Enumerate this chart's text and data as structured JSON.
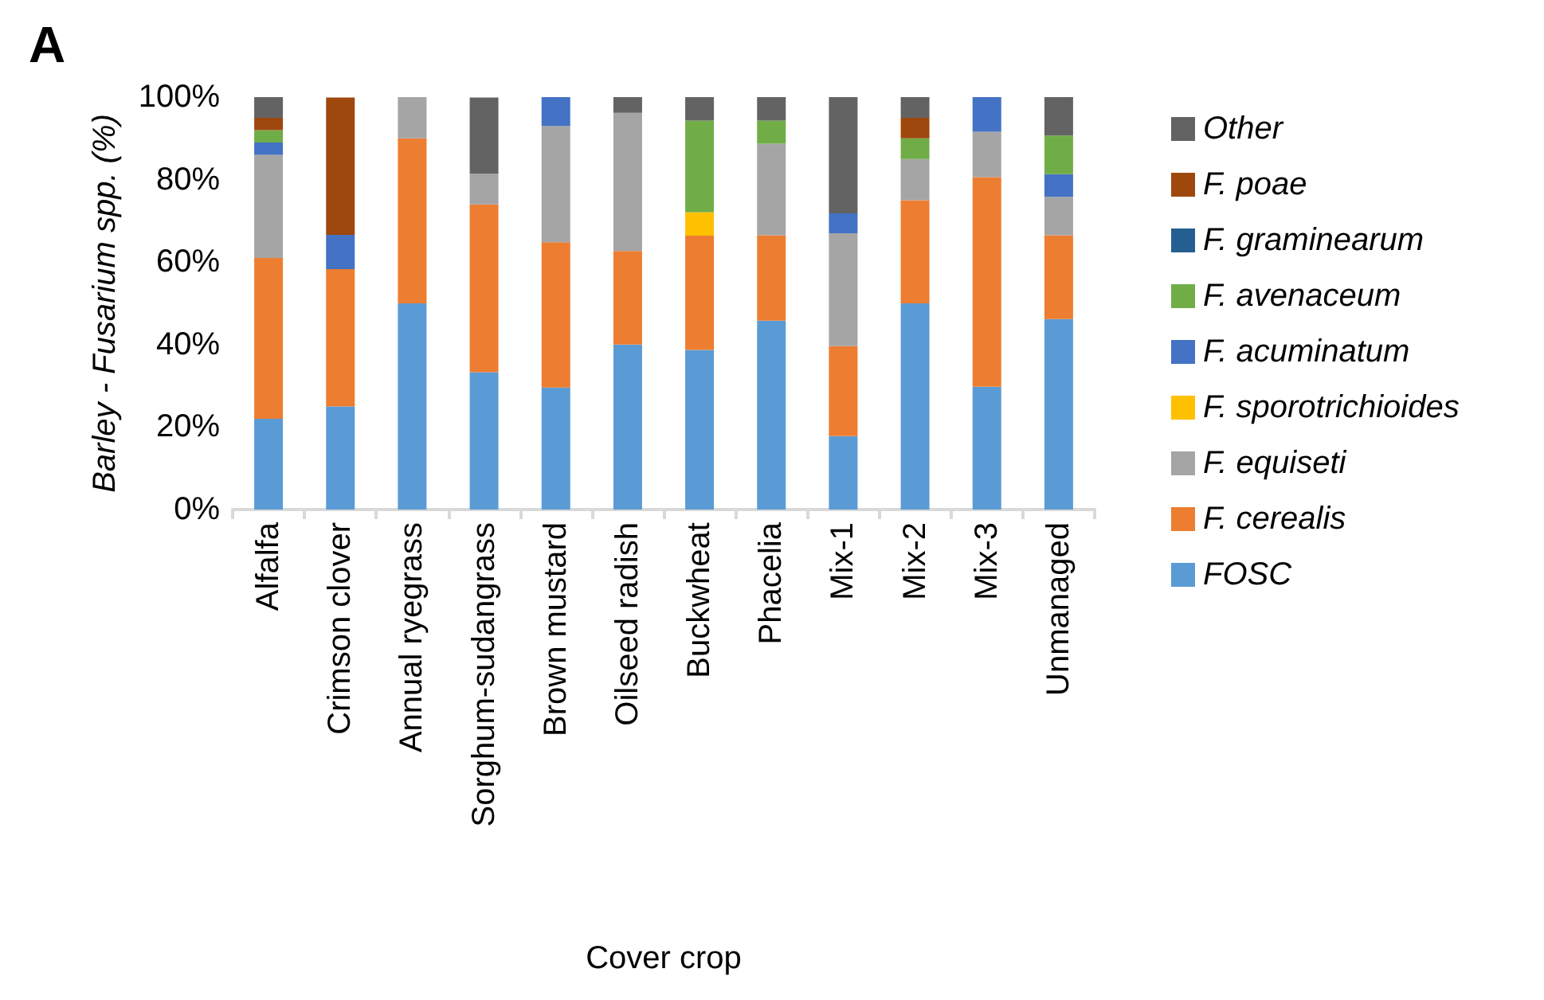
{
  "chart_data": {
    "type": "bar",
    "stacked": true,
    "xlabel": "Cover crop",
    "ylabel": "Barley - Fusarium spp. (%)",
    "annotations": [
      "A"
    ],
    "categories": [
      "Alfalfa",
      "Crimson clover",
      "Annual ryegrass",
      "Sorghum-sudangrass",
      "Brown mustard",
      "Oilseed radish",
      "Buckwheat",
      "Phacelia",
      "Mix-1",
      "Mix-2",
      "Mix-3",
      "Unmanaged"
    ],
    "series": [
      {
        "name": "FOSC",
        "color": "#5b9bd5",
        "values": [
          22,
          25,
          50,
          33.3,
          29.6,
          40,
          38.7,
          45.8,
          17.8,
          50,
          29.8,
          46.2
        ]
      },
      {
        "name": "F. cerealis",
        "color": "#ed7d31",
        "values": [
          39,
          33.3,
          40,
          40.7,
          35.2,
          22.7,
          27.7,
          20.7,
          21.8,
          25,
          50.8,
          20.3
        ]
      },
      {
        "name": "F. equiseti",
        "color": "#a5a5a5",
        "values": [
          25,
          0,
          10,
          7.4,
          28.2,
          33.5,
          0,
          22.2,
          27.4,
          10,
          11,
          9.3
        ]
      },
      {
        "name": "F. sporotrichioides",
        "color": "#ffc000",
        "values": [
          0,
          0,
          0,
          0,
          0,
          0,
          5.7,
          0,
          0,
          0,
          0,
          0
        ]
      },
      {
        "name": "F. acuminatum",
        "color": "#4472c4",
        "values": [
          3,
          8.3,
          0,
          0,
          7,
          0,
          0,
          0,
          4.8,
          0,
          8.4,
          5.5
        ]
      },
      {
        "name": "F. avenaceum",
        "color": "#70ad47",
        "values": [
          3,
          0,
          0,
          0,
          0,
          0,
          22.2,
          5.6,
          0,
          5,
          0,
          9.4
        ]
      },
      {
        "name": "F. graminearum",
        "color": "#255e91",
        "values": [
          0,
          0,
          0,
          0,
          0,
          0,
          0,
          0,
          0,
          0,
          0,
          0
        ]
      },
      {
        "name": "F. poae",
        "color": "#9e480e",
        "values": [
          3,
          33.3,
          0,
          0,
          0,
          0,
          0,
          0,
          0,
          5,
          0,
          0
        ]
      },
      {
        "name": "Other",
        "color": "#636363",
        "values": [
          5,
          0,
          0,
          18.5,
          0,
          3.8,
          5.7,
          5.7,
          28.2,
          5,
          0,
          9.3
        ]
      }
    ],
    "ylim": [
      0,
      100
    ],
    "yticks": [
      {
        "value": 0,
        "label": "0%"
      },
      {
        "value": 20,
        "label": "20%"
      },
      {
        "value": 40,
        "label": "40%"
      },
      {
        "value": 60,
        "label": "60%"
      },
      {
        "value": 80,
        "label": "80%"
      },
      {
        "value": 100,
        "label": "100%"
      }
    ],
    "grid": false,
    "legend": "right"
  }
}
